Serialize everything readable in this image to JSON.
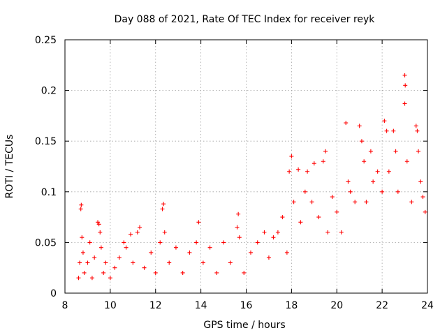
{
  "chart_data": {
    "type": "scatter",
    "title": "Day 088 of 2021, Rate Of TEC Index for receiver reyk",
    "xlabel": "GPS time / hours",
    "ylabel": "ROTI / TECUs",
    "xlim": [
      8,
      24
    ],
    "ylim": [
      0,
      0.25
    ],
    "x_ticks": [
      8,
      10,
      12,
      14,
      16,
      18,
      20,
      22,
      24
    ],
    "x_tick_labels": [
      "8",
      "10",
      "12",
      "14",
      "16",
      "18",
      "20",
      "22",
      "24"
    ],
    "y_ticks": [
      0,
      0.05,
      0.1,
      0.15,
      0.2,
      0.25
    ],
    "y_tick_labels": [
      "0",
      "0.05",
      "0.1",
      "0.15",
      "0.2",
      "0.25"
    ],
    "grid": true,
    "marker": "+",
    "color": "#ff0000",
    "series": [
      {
        "name": "ROTI",
        "points": [
          [
            8.6,
            0.015
          ],
          [
            8.65,
            0.03
          ],
          [
            8.7,
            0.083
          ],
          [
            8.72,
            0.087
          ],
          [
            8.75,
            0.055
          ],
          [
            8.8,
            0.04
          ],
          [
            8.85,
            0.02
          ],
          [
            9.0,
            0.03
          ],
          [
            9.1,
            0.05
          ],
          [
            9.2,
            0.015
          ],
          [
            9.3,
            0.035
          ],
          [
            9.45,
            0.07
          ],
          [
            9.5,
            0.068
          ],
          [
            9.55,
            0.06
          ],
          [
            9.6,
            0.045
          ],
          [
            9.7,
            0.02
          ],
          [
            9.8,
            0.03
          ],
          [
            10.0,
            0.015
          ],
          [
            10.2,
            0.025
          ],
          [
            10.4,
            0.035
          ],
          [
            10.6,
            0.05
          ],
          [
            10.7,
            0.045
          ],
          [
            10.9,
            0.058
          ],
          [
            11.0,
            0.03
          ],
          [
            11.2,
            0.06
          ],
          [
            11.3,
            0.065
          ],
          [
            11.5,
            0.025
          ],
          [
            11.8,
            0.04
          ],
          [
            12.0,
            0.02
          ],
          [
            12.2,
            0.05
          ],
          [
            12.3,
            0.083
          ],
          [
            12.35,
            0.088
          ],
          [
            12.4,
            0.06
          ],
          [
            12.6,
            0.03
          ],
          [
            12.9,
            0.045
          ],
          [
            13.2,
            0.02
          ],
          [
            13.5,
            0.04
          ],
          [
            13.8,
            0.05
          ],
          [
            13.9,
            0.07
          ],
          [
            14.1,
            0.03
          ],
          [
            14.4,
            0.045
          ],
          [
            14.7,
            0.02
          ],
          [
            15.0,
            0.05
          ],
          [
            15.3,
            0.03
          ],
          [
            15.6,
            0.065
          ],
          [
            15.65,
            0.078
          ],
          [
            15.7,
            0.055
          ],
          [
            15.9,
            0.02
          ],
          [
            16.2,
            0.04
          ],
          [
            16.5,
            0.05
          ],
          [
            16.8,
            0.06
          ],
          [
            17.0,
            0.035
          ],
          [
            17.2,
            0.055
          ],
          [
            17.4,
            0.06
          ],
          [
            17.6,
            0.075
          ],
          [
            17.8,
            0.04
          ],
          [
            17.9,
            0.12
          ],
          [
            18.0,
            0.135
          ],
          [
            18.1,
            0.09
          ],
          [
            18.3,
            0.122
          ],
          [
            18.4,
            0.07
          ],
          [
            18.6,
            0.1
          ],
          [
            18.7,
            0.12
          ],
          [
            18.9,
            0.09
          ],
          [
            19.0,
            0.128
          ],
          [
            19.2,
            0.075
          ],
          [
            19.4,
            0.13
          ],
          [
            19.5,
            0.14
          ],
          [
            19.6,
            0.06
          ],
          [
            19.8,
            0.095
          ],
          [
            20.0,
            0.08
          ],
          [
            20.2,
            0.06
          ],
          [
            20.4,
            0.168
          ],
          [
            20.5,
            0.11
          ],
          [
            20.6,
            0.1
          ],
          [
            20.8,
            0.09
          ],
          [
            21.0,
            0.165
          ],
          [
            21.1,
            0.15
          ],
          [
            21.2,
            0.13
          ],
          [
            21.3,
            0.09
          ],
          [
            21.5,
            0.14
          ],
          [
            21.6,
            0.11
          ],
          [
            21.8,
            0.12
          ],
          [
            22.0,
            0.1
          ],
          [
            22.1,
            0.17
          ],
          [
            22.2,
            0.16
          ],
          [
            22.3,
            0.12
          ],
          [
            22.5,
            0.16
          ],
          [
            22.6,
            0.14
          ],
          [
            22.7,
            0.1
          ],
          [
            23.0,
            0.215
          ],
          [
            23.02,
            0.205
          ],
          [
            23.0,
            0.187
          ],
          [
            23.1,
            0.13
          ],
          [
            23.3,
            0.09
          ],
          [
            23.5,
            0.165
          ],
          [
            23.55,
            0.16
          ],
          [
            23.6,
            0.14
          ],
          [
            23.7,
            0.11
          ],
          [
            23.8,
            0.095
          ],
          [
            23.9,
            0.08
          ]
        ]
      }
    ]
  }
}
